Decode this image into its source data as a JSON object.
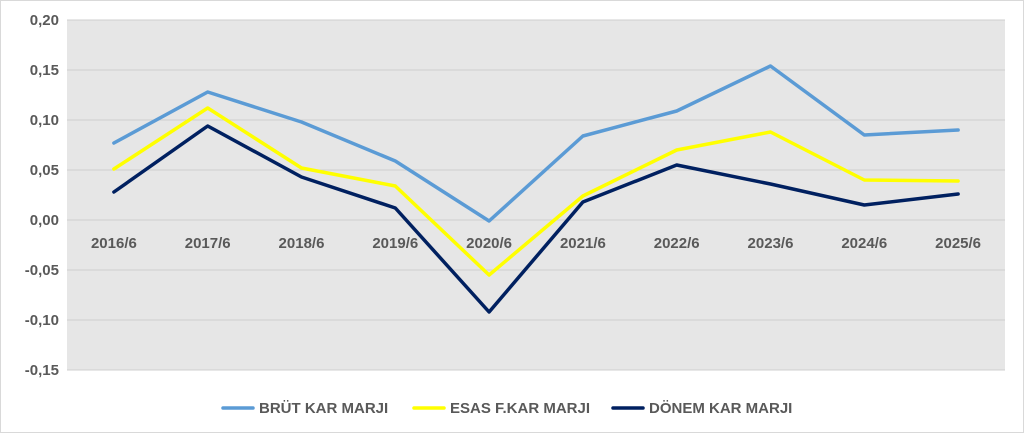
{
  "chart_data": {
    "type": "line",
    "title": "",
    "xlabel": "",
    "ylabel": "",
    "categories": [
      "2016/6",
      "2017/6",
      "2018/6",
      "2019/6",
      "2020/6",
      "2021/6",
      "2022/6",
      "2023/6",
      "2024/6",
      "2025/6"
    ],
    "ylim": [
      -0.15,
      0.2
    ],
    "yticks": [
      0.2,
      0.15,
      0.1,
      0.05,
      0.0,
      -0.05,
      -0.1,
      -0.15
    ],
    "ytick_labels": [
      "0,20",
      "0,15",
      "0,10",
      "0,05",
      "0,00",
      "-0,05",
      "-0,10",
      "-0,15"
    ],
    "grid": true,
    "legend_position": "bottom",
    "series": [
      {
        "name": "BRÜT KAR MARJI",
        "color": "#5b9bd5",
        "values": [
          0.077,
          0.128,
          0.098,
          0.059,
          -0.001,
          0.084,
          0.109,
          0.154,
          0.085,
          0.09
        ]
      },
      {
        "name": "ESAS F.KAR MARJI",
        "color": "#ffff00",
        "values": [
          0.051,
          0.112,
          0.052,
          0.034,
          -0.055,
          0.024,
          0.07,
          0.088,
          0.04,
          0.039
        ]
      },
      {
        "name": "DÖNEM KAR MARJI",
        "color": "#002060",
        "values": [
          0.028,
          0.094,
          0.043,
          0.012,
          -0.092,
          0.018,
          0.055,
          0.036,
          0.015,
          0.026
        ]
      }
    ],
    "plot_background": "#e6e6e6",
    "grid_color": "#cfcfcf",
    "tick_color": "#595959"
  }
}
